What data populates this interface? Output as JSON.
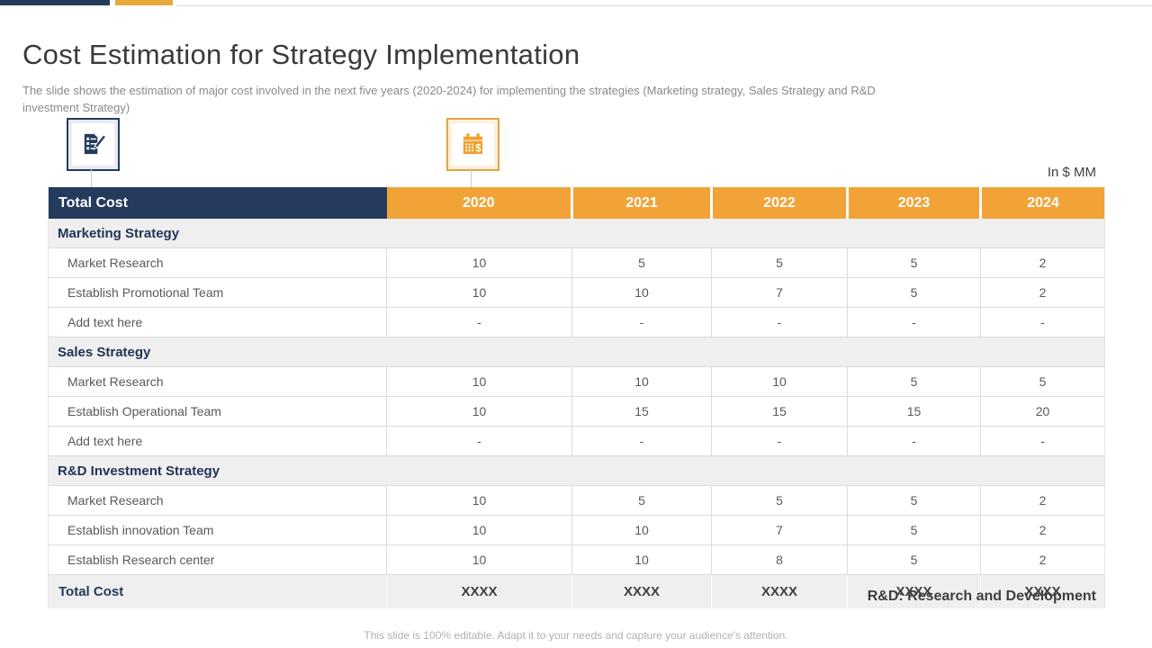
{
  "slide": {
    "title": "Cost Estimation for Strategy Implementation",
    "subtitle": "The slide shows the estimation of major cost involved in the next five years (2020-2024) for implementing the strategies (Marketing strategy, Sales Strategy and R&D investment Strategy)",
    "unit_label": "In $ MM",
    "rd_note": "R&D: Research and Development",
    "footer": "This slide is 100% editable. Adapt it to your needs and capture your audience's attention."
  },
  "icons": {
    "left": "checklist-pen-icon",
    "right": "calendar-dollar-icon"
  },
  "colors": {
    "navy": "#243B5D",
    "orange": "#F2A338",
    "gold_accent": "#E5A93C",
    "section_bg": "#EFEFEF",
    "row_border": "#DCDCDC",
    "body_text": "#595959",
    "title_text": "#3A3A3A",
    "muted_text": "#B0B0B0"
  },
  "table": {
    "header": {
      "label": "Total Cost",
      "years": [
        "2020",
        "2021",
        "2022",
        "2023",
        "2024"
      ]
    },
    "sections": [
      {
        "name": "Marketing Strategy",
        "rows": [
          {
            "label": "Market Research",
            "values": [
              "10",
              "5",
              "5",
              "5",
              "2"
            ]
          },
          {
            "label": "Establish Promotional Team",
            "values": [
              "10",
              "10",
              "7",
              "5",
              "2"
            ]
          },
          {
            "label": "Add text here",
            "values": [
              "-",
              "-",
              "-",
              "-",
              "-"
            ]
          }
        ]
      },
      {
        "name": "Sales Strategy",
        "rows": [
          {
            "label": "Market Research",
            "values": [
              "10",
              "10",
              "10",
              "5",
              "5"
            ]
          },
          {
            "label": "Establish Operational Team",
            "values": [
              "10",
              "15",
              "15",
              "15",
              "20"
            ]
          },
          {
            "label": "Add text here",
            "values": [
              "-",
              "-",
              "-",
              "-",
              "-"
            ]
          }
        ]
      },
      {
        "name": "R&D Investment Strategy",
        "rows": [
          {
            "label": "Market Research",
            "values": [
              "10",
              "5",
              "5",
              "5",
              "2"
            ]
          },
          {
            "label": "Establish innovation Team",
            "values": [
              "10",
              "10",
              "7",
              "5",
              "2"
            ]
          },
          {
            "label": "Establish Research center",
            "values": [
              "10",
              "10",
              "8",
              "5",
              "2"
            ]
          }
        ]
      }
    ],
    "total_row": {
      "label": "Total Cost",
      "values": [
        "XXXX",
        "XXXX",
        "XXXX",
        "XXXX",
        "XXXX"
      ]
    }
  },
  "chart_data": {
    "type": "table",
    "title": "Cost Estimation for Strategy Implementation (In $ MM)",
    "columns": [
      "Total Cost",
      "2020",
      "2021",
      "2022",
      "2023",
      "2024"
    ],
    "rows": [
      [
        "Marketing Strategy",
        "",
        "",
        "",
        "",
        ""
      ],
      [
        "Market Research",
        "10",
        "5",
        "5",
        "5",
        "2"
      ],
      [
        "Establish Promotional Team",
        "10",
        "10",
        "7",
        "5",
        "2"
      ],
      [
        "Add text here",
        "-",
        "-",
        "-",
        "-",
        "-"
      ],
      [
        "Sales Strategy",
        "",
        "",
        "",
        "",
        ""
      ],
      [
        "Market Research",
        "10",
        "10",
        "10",
        "5",
        "5"
      ],
      [
        "Establish Operational Team",
        "10",
        "15",
        "15",
        "15",
        "20"
      ],
      [
        "Add text here",
        "-",
        "-",
        "-",
        "-",
        "-"
      ],
      [
        "R&D Investment Strategy",
        "",
        "",
        "",
        "",
        ""
      ],
      [
        "Market Research",
        "10",
        "5",
        "5",
        "5",
        "2"
      ],
      [
        "Establish innovation Team",
        "10",
        "10",
        "7",
        "5",
        "2"
      ],
      [
        "Establish Research center",
        "10",
        "10",
        "8",
        "5",
        "2"
      ],
      [
        "Total Cost",
        "XXXX",
        "XXXX",
        "XXXX",
        "XXXX",
        "XXXX"
      ]
    ]
  }
}
